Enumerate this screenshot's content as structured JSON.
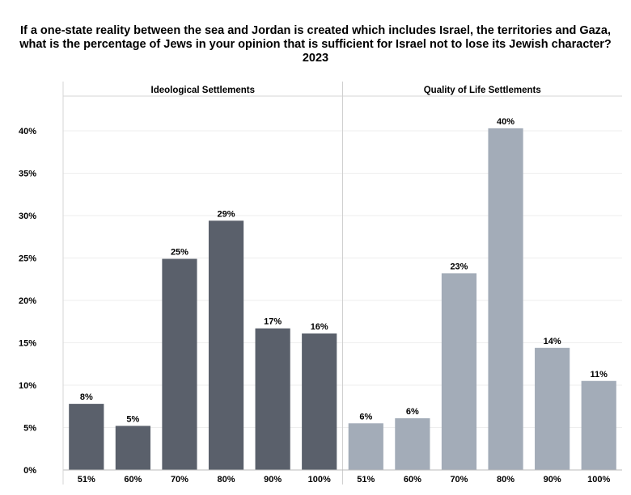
{
  "title": "If a one-state reality between the sea and Jordan is created which includes Israel, the territories and Gaza, what is the percentage of Jews in your opinion that is sufficient for Israel not to lose its Jewish character?",
  "subtitle": "2023",
  "colors": {
    "ideological": "#5a606b",
    "quality": "#a3acb8"
  },
  "chart_data": {
    "type": "bar",
    "title": "If a one-state reality between the sea and Jordan is created which includes Israel, the territories and Gaza, what is the percentage of Jews in your opinion that is sufficient for Israel not to lose its Jewish character?",
    "subtitle": "2023",
    "categories": [
      "51%",
      "60%",
      "70%",
      "80%",
      "90%",
      "100%"
    ],
    "ylim": [
      0,
      44
    ],
    "yticks": [
      0,
      5,
      10,
      15,
      20,
      25,
      30,
      35,
      40
    ],
    "yticklabels": [
      "0%",
      "5%",
      "10%",
      "15%",
      "20%",
      "25%",
      "30%",
      "35%",
      "40%"
    ],
    "grid": true,
    "panels": [
      {
        "name": "Ideological Settlements",
        "values": [
          7.8,
          5.2,
          24.9,
          29.4,
          16.7,
          16.1
        ],
        "labels": [
          "8%",
          "5%",
          "25%",
          "29%",
          "17%",
          "16%"
        ]
      },
      {
        "name": "Quality of Life Settlements",
        "values": [
          5.5,
          6.1,
          23.2,
          40.3,
          14.4,
          10.5
        ],
        "labels": [
          "6%",
          "6%",
          "23%",
          "40%",
          "14%",
          "11%"
        ]
      }
    ]
  }
}
